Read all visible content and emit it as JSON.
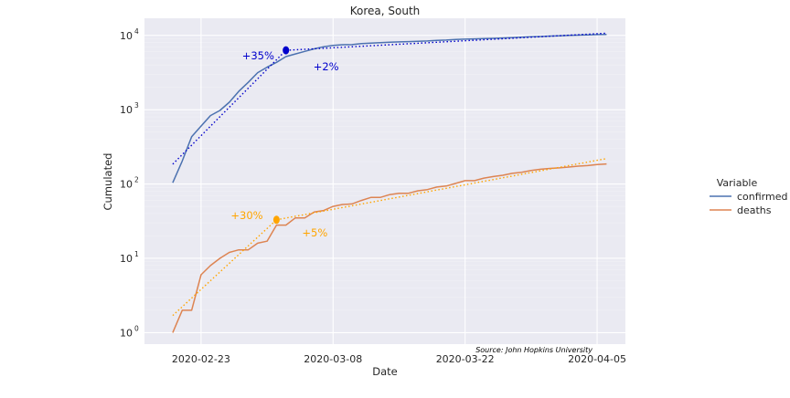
{
  "chart_data": {
    "type": "line",
    "title": "Korea, South",
    "xlabel": "Date",
    "ylabel": "Cumulated",
    "yscale": "log",
    "ylim": [
      0.7,
      17000
    ],
    "xlim": [
      "2020-02-17",
      "2020-04-08"
    ],
    "x_ticks": [
      "2020-02-23",
      "2020-03-08",
      "2020-03-22",
      "2020-04-05"
    ],
    "y_ticks": [
      {
        "value": 1,
        "base": "10",
        "exp": "0"
      },
      {
        "value": 10,
        "base": "10",
        "exp": "1"
      },
      {
        "value": 100,
        "base": "10",
        "exp": "2"
      },
      {
        "value": 1000,
        "base": "10",
        "exp": "3"
      },
      {
        "value": 10000,
        "base": "10",
        "exp": "4"
      }
    ],
    "grid": true,
    "legend": {
      "title": "Variable",
      "placement": "right"
    },
    "source_note": "Source: John Hopkins University",
    "series": [
      {
        "name": "confirmed",
        "color": "#4c72b0",
        "points": [
          [
            "2020-02-20",
            104
          ],
          [
            "2020-02-21",
            204
          ],
          [
            "2020-02-22",
            433
          ],
          [
            "2020-02-23",
            602
          ],
          [
            "2020-02-24",
            833
          ],
          [
            "2020-02-25",
            977
          ],
          [
            "2020-02-26",
            1261
          ],
          [
            "2020-02-27",
            1766
          ],
          [
            "2020-02-28",
            2337
          ],
          [
            "2020-02-29",
            3150
          ],
          [
            "2020-03-01",
            3736
          ],
          [
            "2020-03-02",
            4335
          ],
          [
            "2020-03-03",
            5186
          ],
          [
            "2020-03-04",
            5621
          ],
          [
            "2020-03-05",
            6088
          ],
          [
            "2020-03-06",
            6593
          ],
          [
            "2020-03-07",
            7041
          ],
          [
            "2020-03-08",
            7314
          ],
          [
            "2020-03-09",
            7478
          ],
          [
            "2020-03-10",
            7513
          ],
          [
            "2020-03-11",
            7755
          ],
          [
            "2020-03-12",
            7869
          ],
          [
            "2020-03-13",
            7979
          ],
          [
            "2020-03-14",
            8086
          ],
          [
            "2020-03-15",
            8162
          ],
          [
            "2020-03-16",
            8236
          ],
          [
            "2020-03-17",
            8320
          ],
          [
            "2020-03-18",
            8413
          ],
          [
            "2020-03-19",
            8565
          ],
          [
            "2020-03-20",
            8652
          ],
          [
            "2020-03-21",
            8799
          ],
          [
            "2020-03-22",
            8897
          ],
          [
            "2020-03-23",
            8961
          ],
          [
            "2020-03-24",
            9037
          ],
          [
            "2020-03-25",
            9137
          ],
          [
            "2020-03-26",
            9241
          ],
          [
            "2020-03-27",
            9332
          ],
          [
            "2020-03-28",
            9478
          ],
          [
            "2020-03-29",
            9583
          ],
          [
            "2020-03-30",
            9661
          ],
          [
            "2020-03-31",
            9786
          ],
          [
            "2020-04-01",
            9887
          ],
          [
            "2020-04-02",
            9976
          ],
          [
            "2020-04-03",
            10062
          ],
          [
            "2020-04-04",
            10156
          ],
          [
            "2020-04-05",
            10237
          ],
          [
            "2020-04-06",
            10284
          ]
        ]
      },
      {
        "name": "deaths",
        "color": "#dd8452",
        "points": [
          [
            "2020-02-20",
            1
          ],
          [
            "2020-02-21",
            2
          ],
          [
            "2020-02-22",
            2
          ],
          [
            "2020-02-23",
            6
          ],
          [
            "2020-02-24",
            8
          ],
          [
            "2020-02-25",
            10
          ],
          [
            "2020-02-26",
            12
          ],
          [
            "2020-02-27",
            13
          ],
          [
            "2020-02-28",
            13
          ],
          [
            "2020-02-29",
            16
          ],
          [
            "2020-03-01",
            17
          ],
          [
            "2020-03-02",
            28
          ],
          [
            "2020-03-03",
            28
          ],
          [
            "2020-03-04",
            35
          ],
          [
            "2020-03-05",
            35
          ],
          [
            "2020-03-06",
            42
          ],
          [
            "2020-03-07",
            44
          ],
          [
            "2020-03-08",
            50
          ],
          [
            "2020-03-09",
            53
          ],
          [
            "2020-03-10",
            54
          ],
          [
            "2020-03-11",
            60
          ],
          [
            "2020-03-12",
            66
          ],
          [
            "2020-03-13",
            66
          ],
          [
            "2020-03-14",
            72
          ],
          [
            "2020-03-15",
            75
          ],
          [
            "2020-03-16",
            75
          ],
          [
            "2020-03-17",
            81
          ],
          [
            "2020-03-18",
            84
          ],
          [
            "2020-03-19",
            91
          ],
          [
            "2020-03-20",
            94
          ],
          [
            "2020-03-21",
            102
          ],
          [
            "2020-03-22",
            111
          ],
          [
            "2020-03-23",
            111
          ],
          [
            "2020-03-24",
            120
          ],
          [
            "2020-03-25",
            126
          ],
          [
            "2020-03-26",
            131
          ],
          [
            "2020-03-27",
            139
          ],
          [
            "2020-03-28",
            144
          ],
          [
            "2020-03-29",
            152
          ],
          [
            "2020-03-30",
            158
          ],
          [
            "2020-03-31",
            162
          ],
          [
            "2020-04-01",
            165
          ],
          [
            "2020-04-02",
            169
          ],
          [
            "2020-04-03",
            174
          ],
          [
            "2020-04-04",
            177
          ],
          [
            "2020-04-05",
            183
          ],
          [
            "2020-04-06",
            186
          ]
        ]
      }
    ],
    "fits": [
      {
        "series": "confirmed",
        "color": "#0000cc",
        "label": "+35%",
        "from": [
          "2020-02-20",
          185
        ],
        "to": [
          "2020-03-03",
          6300
        ]
      },
      {
        "series": "confirmed",
        "color": "#0000cc",
        "label": "+2%",
        "from": [
          "2020-03-03",
          6300
        ],
        "to": [
          "2020-04-06",
          10700
        ]
      },
      {
        "series": "deaths",
        "color": "#ffa500",
        "label": "+30%",
        "from": [
          "2020-02-20",
          1.7
        ],
        "to": [
          "2020-03-02",
          33
        ]
      },
      {
        "series": "deaths",
        "color": "#ffa500",
        "label": "+5%",
        "from": [
          "2020-03-02",
          33
        ],
        "to": [
          "2020-04-06",
          220
        ]
      }
    ],
    "breakpoints": [
      {
        "series": "confirmed",
        "color": "#0000cc",
        "x": "2020-03-03",
        "y": 6300
      },
      {
        "series": "deaths",
        "color": "#ffa500",
        "x": "2020-03-02",
        "y": 33
      }
    ]
  }
}
